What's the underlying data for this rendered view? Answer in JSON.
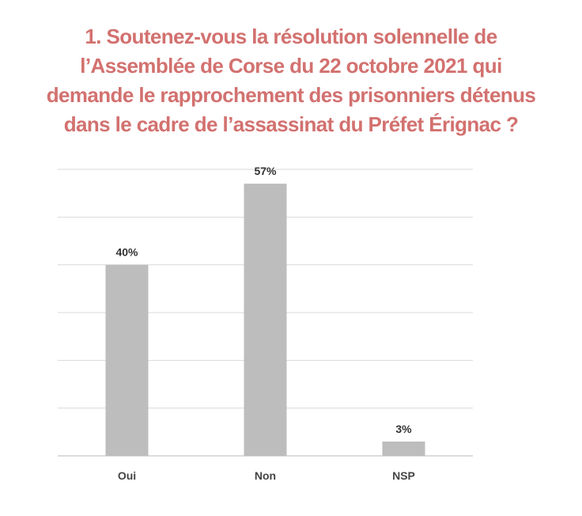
{
  "colors": {
    "title": "#d2716f",
    "bar": "#bdbdbd",
    "grid": "#d9d9d9",
    "axis": "#d0d0d0"
  },
  "title_lines": [
    "1. Soutenez-vous la résolution solennelle de",
    "l’Assemblée de Corse du 22 octobre 2021 qui",
    "demande le rapprochement des prisonniers détenus",
    "dans le cadre de l’assassinat du Préfet Érignac ?"
  ],
  "chart_data": {
    "type": "bar",
    "title": "1. Soutenez-vous la résolution solennelle de l’Assemblée de Corse du 22 octobre 2021 qui demande le rapprochement des prisonniers détenus dans le cadre de l’assassinat du Préfet Érignac ?",
    "categories": [
      "Oui",
      "Non",
      "NSP"
    ],
    "values": [
      40,
      57,
      3
    ],
    "data_labels": [
      "40%",
      "57%",
      "3%"
    ],
    "unit": "%",
    "xlabel": "",
    "ylabel": "",
    "ylim": [
      0,
      60
    ],
    "grid_step": 10,
    "grid": true,
    "legend": "none"
  }
}
